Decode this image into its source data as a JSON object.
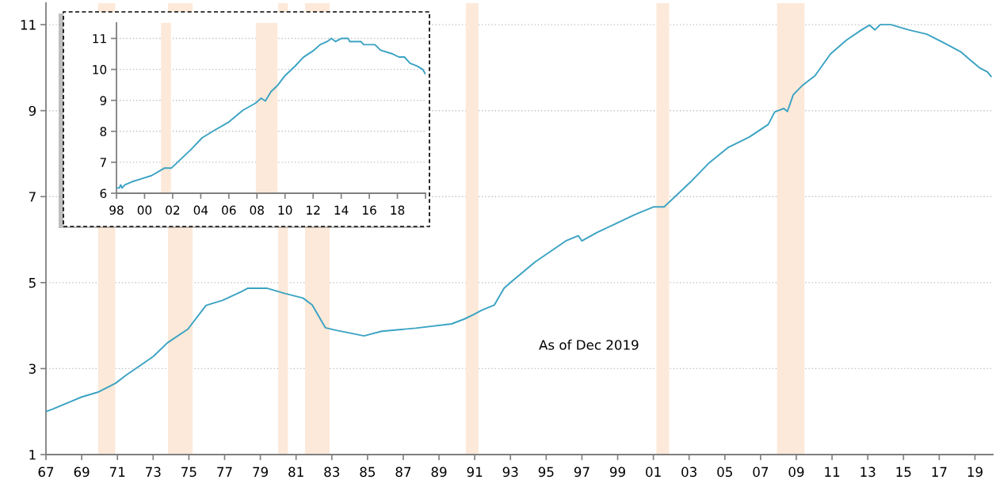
{
  "chart_data": [
    {
      "type": "line",
      "annotations": [
        "As of Dec 2019"
      ],
      "x": [
        1967.0,
        1967.4,
        1968.3,
        1969.0,
        1969.9,
        1970.9,
        1971.5,
        1972.2,
        1973.0,
        1973.8,
        1974.95,
        1975.96,
        1976.9,
        1978.0,
        1978.3,
        1979.36,
        1980.34,
        1981.39,
        1981.9,
        1982.64,
        1983.26,
        1984.8,
        1985.8,
        1987.69,
        1989.7,
        1990.4,
        1990.9,
        1991.4,
        1992.1,
        1992.64,
        1993.0,
        1994.38,
        1996.1,
        1996.8,
        1997.0,
        1997.86,
        1998.9,
        1999.95,
        2001.0,
        2001.6,
        2003.08,
        2004.13,
        2005.17,
        2006.38,
        2007.43,
        2007.79,
        2008.3,
        2008.5,
        2008.83,
        2009.35,
        2010.04,
        2010.92,
        2011.8,
        2012.66,
        2013.1,
        2013.4,
        2013.7,
        2014.3,
        2015.27,
        2016.3,
        2017.2,
        2018.2,
        2018.76,
        2019.28,
        2019.7,
        2019.9
      ],
      "series": [
        {
          "color": "#3ba3c3",
          "values": [
            2.0,
            2.06,
            2.22,
            2.34,
            2.45,
            2.66,
            2.85,
            3.05,
            3.28,
            3.6,
            3.92,
            4.47,
            4.59,
            4.8,
            4.87,
            4.87,
            4.75,
            4.64,
            4.48,
            3.95,
            3.89,
            3.76,
            3.87,
            3.94,
            4.04,
            4.15,
            4.25,
            4.36,
            4.48,
            4.87,
            5.0,
            5.48,
            5.97,
            6.09,
            5.97,
            6.17,
            6.37,
            6.58,
            6.76,
            6.76,
            7.34,
            7.79,
            8.14,
            8.39,
            8.68,
            8.97,
            9.05,
            8.98,
            9.37,
            9.59,
            9.81,
            10.32,
            10.64,
            10.88,
            10.99,
            10.88,
            11.0,
            11.0,
            10.88,
            10.78,
            10.59,
            10.37,
            10.17,
            9.99,
            9.9,
            9.8
          ]
        }
      ],
      "xlim": [
        1967,
        2020
      ],
      "ylim": [
        1,
        11.5
      ],
      "xticks": [
        {
          "value": 1967,
          "label": "67"
        },
        {
          "value": 1969,
          "label": "69"
        },
        {
          "value": 1971,
          "label": "71"
        },
        {
          "value": 1973,
          "label": "73"
        },
        {
          "value": 1975,
          "label": "75"
        },
        {
          "value": 1977,
          "label": "77"
        },
        {
          "value": 1979,
          "label": "79"
        },
        {
          "value": 1981,
          "label": "81"
        },
        {
          "value": 1983,
          "label": "83"
        },
        {
          "value": 1985,
          "label": "85"
        },
        {
          "value": 1987,
          "label": "87"
        },
        {
          "value": 1989,
          "label": "89"
        },
        {
          "value": 1991,
          "label": "91"
        },
        {
          "value": 1993,
          "label": "93"
        },
        {
          "value": 1995,
          "label": "95"
        },
        {
          "value": 1997,
          "label": "97"
        },
        {
          "value": 1999,
          "label": "99"
        },
        {
          "value": 2001,
          "label": "01"
        },
        {
          "value": 2003,
          "label": "03"
        },
        {
          "value": 2005,
          "label": "05"
        },
        {
          "value": 2007,
          "label": "07"
        },
        {
          "value": 2009,
          "label": "09"
        },
        {
          "value": 2011,
          "label": "11"
        },
        {
          "value": 2013,
          "label": "13"
        },
        {
          "value": 2015,
          "label": "15"
        },
        {
          "value": 2017,
          "label": "17"
        },
        {
          "value": 2019,
          "label": "19"
        }
      ],
      "yticks": [
        1,
        3,
        5,
        7,
        9,
        11
      ],
      "grid": "y",
      "bands": [
        {
          "axis": "x",
          "from": 1969.92,
          "to": 1970.88,
          "color": "#fde9d9"
        },
        {
          "axis": "x",
          "from": 1973.83,
          "to": 1975.21,
          "color": "#fde9d9"
        },
        {
          "axis": "x",
          "from": 1980.0,
          "to": 1980.54,
          "color": "#fde9d9"
        },
        {
          "axis": "x",
          "from": 1981.5,
          "to": 1982.88,
          "color": "#fde9d9"
        },
        {
          "axis": "x",
          "from": 1990.5,
          "to": 1991.21,
          "color": "#fde9d9"
        },
        {
          "axis": "x",
          "from": 2001.17,
          "to": 2001.88,
          "color": "#fde9d9"
        },
        {
          "axis": "x",
          "from": 2007.92,
          "to": 2009.46,
          "color": "#fde9d9"
        }
      ]
    },
    {
      "type": "line",
      "x": [
        1998.0,
        1998.2,
        1998.3,
        1998.4,
        1998.6,
        1999.1,
        1999.8,
        2000.5,
        2001.4,
        2001.9,
        2002.6,
        2003.3,
        2004.1,
        2005.0,
        2006.0,
        2007.0,
        2007.9,
        2008.3,
        2008.6,
        2009.0,
        2009.5,
        2010.0,
        2010.7,
        2011.3,
        2012.0,
        2012.5,
        2013.0,
        2013.3,
        2013.6,
        2014.0,
        2014.5,
        2014.6,
        2015.4,
        2015.6,
        2016.4,
        2016.8,
        2017.6,
        2018.1,
        2018.5,
        2018.9,
        2019.4,
        2019.8,
        2020.0
      ],
      "series": [
        {
          "color": "#3ba3c3",
          "values": [
            6.17,
            6.17,
            6.27,
            6.17,
            6.27,
            6.37,
            6.47,
            6.57,
            6.81,
            6.81,
            7.11,
            7.41,
            7.79,
            8.04,
            8.3,
            8.68,
            8.91,
            9.07,
            8.98,
            9.28,
            9.5,
            9.8,
            10.1,
            10.39,
            10.6,
            10.8,
            10.9,
            11.0,
            10.9,
            11.0,
            11.0,
            10.9,
            10.9,
            10.8,
            10.8,
            10.62,
            10.51,
            10.4,
            10.4,
            10.2,
            10.11,
            10.0,
            9.85
          ]
        }
      ],
      "xlim": [
        1998,
        2020
      ],
      "ylim": [
        6,
        11.5
      ],
      "xticks": [
        {
          "value": 1998,
          "label": "98"
        },
        {
          "value": 2000,
          "label": "00"
        },
        {
          "value": 2002,
          "label": "02"
        },
        {
          "value": 2004,
          "label": "04"
        },
        {
          "value": 2006,
          "label": "06"
        },
        {
          "value": 2008,
          "label": "08"
        },
        {
          "value": 2010,
          "label": "10"
        },
        {
          "value": 2012,
          "label": "12"
        },
        {
          "value": 2014,
          "label": "14"
        },
        {
          "value": 2016,
          "label": "16"
        },
        {
          "value": 2018,
          "label": "18"
        },
        {
          "value": 2020,
          "label": null
        }
      ],
      "yticks": [
        6,
        7,
        8,
        9,
        10,
        11
      ],
      "grid": "y",
      "bands": [
        {
          "axis": "x",
          "from": 2001.17,
          "to": 2001.88,
          "color": "#fde9d9"
        },
        {
          "axis": "x",
          "from": 2007.92,
          "to": 2009.46,
          "color": "#fde9d9"
        }
      ]
    }
  ]
}
